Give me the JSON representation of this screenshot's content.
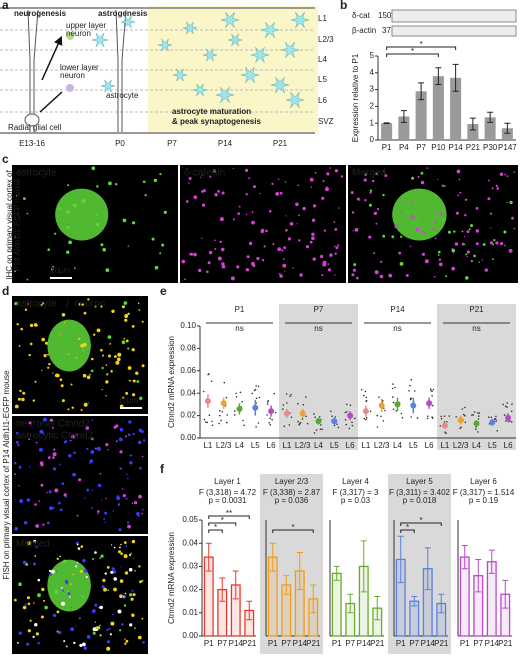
{
  "figure": {
    "panel_labels": [
      "a",
      "b",
      "c",
      "d",
      "e",
      "f"
    ],
    "a": {
      "titles": [
        "neurogenesis",
        "astrogenesis"
      ],
      "upper_neuron": [
        "upper layer",
        "neuron"
      ],
      "lower_neuron": [
        "lower layer",
        "neuron"
      ],
      "astrocyte": "astrocyte",
      "radial_glia": "Radial glial cell",
      "maturation": [
        "astrocyte maturation",
        "& peak synaptogenesis"
      ],
      "stages": [
        "E13-16",
        "P0",
        "P7",
        "P14",
        "P21"
      ],
      "layers": [
        "L1",
        "L2/3",
        "L4",
        "L5",
        "L6",
        "SVZ"
      ]
    },
    "blot": [
      {
        "label": "δ-cat",
        "marker": "150"
      },
      {
        "label": "β-actin",
        "marker": "37"
      }
    ],
    "c": {
      "channels": [
        "astrocyte",
        "δ-catenin",
        "Merged"
      ],
      "caption": [
        "IHC on primary visual cortex of",
        "P14 Aldh1l1-EGFP mouse"
      ],
      "scale": "10μm"
    },
    "d": {
      "top": [
        "astrocyte",
        "/",
        "neuron"
      ],
      "middle": [
        "neuronal Ctnnd2",
        "astrocytic Ctnnd2"
      ],
      "bottom": "Merged",
      "caption": "FISH on primary visual cortex of P14 Aldh1l1-EGFP mouse",
      "scale": "10μm"
    }
  },
  "chart_data": [
    {
      "type": "bar",
      "ylabel": "Expression relative to P1",
      "categories": [
        "P1",
        "P4",
        "P7",
        "P10",
        "P14",
        "P21",
        "P30",
        "P147"
      ],
      "values": [
        1,
        1.4,
        2.9,
        3.8,
        3.7,
        0.95,
        1.35,
        0.7
      ],
      "errors": [
        0.02,
        0.35,
        0.5,
        0.5,
        0.8,
        0.35,
        0.3,
        0.3
      ],
      "color": "#9a9a9a",
      "ylim": [
        0,
        5
      ],
      "yticks": [
        0,
        1,
        2,
        3,
        4,
        5
      ],
      "significance": [
        "*",
        "*"
      ]
    },
    {
      "type": "dot",
      "ylabel": "Ctnnd2 mRNA expression",
      "ylim": [
        0,
        0.1
      ],
      "yticks": [
        {
          "value": 0,
          "label": "0.00"
        },
        {
          "value": 0.02,
          "label": "0.02"
        },
        {
          "value": 0.04,
          "label": "0.04"
        },
        {
          "value": 0.06,
          "label": "0.06"
        },
        {
          "value": 0.08,
          "label": "0.08"
        },
        {
          "value": 0.1,
          "label": "0.10"
        }
      ],
      "colors": [
        "#e88a8a",
        "#f0a030",
        "#58a830",
        "#5a80e0",
        "#b84ac8"
      ],
      "groups": [
        {
          "name": "P1",
          "annotation": "ns",
          "categories": [
            "L1",
            "L2/3",
            "L4",
            "L5",
            "L6"
          ],
          "values": [
            0.033,
            0.031,
            0.026,
            0.027,
            0.024
          ],
          "errors": [
            0.006,
            0.005,
            0.005,
            0.007,
            0.005
          ]
        },
        {
          "name": "P7",
          "annotation": "ns",
          "categories": [
            "L1",
            "L2/3",
            "L4",
            "L5",
            "L6"
          ],
          "values": [
            0.022,
            0.022,
            0.015,
            0.015,
            0.02
          ],
          "errors": [
            0.004,
            0.004,
            0.003,
            0.003,
            0.004
          ]
        },
        {
          "name": "P14",
          "annotation": "ns",
          "categories": [
            "L1",
            "L2/3",
            "L4",
            "L5",
            "L6"
          ],
          "values": [
            0.024,
            0.029,
            0.03,
            0.029,
            0.031
          ],
          "errors": [
            0.005,
            0.006,
            0.006,
            0.007,
            0.005
          ]
        },
        {
          "name": "P21",
          "annotation": "ns",
          "categories": [
            "L1",
            "L2/3",
            "L4",
            "L5",
            "L6"
          ],
          "values": [
            0.011,
            0.016,
            0.013,
            0.014,
            0.018
          ],
          "errors": [
            0.003,
            0.004,
            0.003,
            0.003,
            0.004
          ]
        }
      ]
    },
    {
      "type": "bar",
      "title": "Layer 1",
      "stats": [
        "F (3,318) = 4.72",
        "p = 0.0031"
      ],
      "ylabel": "Ctnnd2 mRNA expression",
      "categories": [
        "P1",
        "P7",
        "P14",
        "P21"
      ],
      "values": [
        0.034,
        0.02,
        0.022,
        0.011
      ],
      "errors": [
        0.006,
        0.005,
        0.006,
        0.004
      ],
      "color": "#e8392b",
      "ylim": [
        0,
        0.05
      ],
      "yticks": [
        {
          "value": 0,
          "label": "0.00"
        },
        {
          "value": 0.01,
          "label": "0.01"
        },
        {
          "value": 0.02,
          "label": "0.02"
        },
        {
          "value": 0.03,
          "label": "0.03"
        },
        {
          "value": 0.04,
          "label": "0.04"
        },
        {
          "value": 0.05,
          "label": "0.05"
        }
      ],
      "significance": [
        "*",
        "*",
        "**"
      ],
      "shaded": false
    },
    {
      "type": "bar",
      "title": "Layer 2/3",
      "stats": [
        "F (3,338) = 2.87",
        "p = 0.036"
      ],
      "categories": [
        "P1",
        "P7",
        "P14",
        "P21"
      ],
      "values": [
        0.034,
        0.022,
        0.028,
        0.016
      ],
      "errors": [
        0.006,
        0.004,
        0.008,
        0.006
      ],
      "color": "#f39c12",
      "ylim": [
        0,
        0.05
      ],
      "significance": [
        "*"
      ],
      "shaded": true
    },
    {
      "type": "bar",
      "title": "Layer 4",
      "stats": [
        "F (3,317) = 3",
        "p = 0.03"
      ],
      "categories": [
        "P1",
        "P7",
        "P14",
        "P21"
      ],
      "values": [
        0.027,
        0.014,
        0.03,
        0.012
      ],
      "errors": [
        0.003,
        0.004,
        0.011,
        0.005
      ],
      "color": "#6aaa2a",
      "ylim": [
        0,
        0.05
      ],
      "significance": [],
      "shaded": false
    },
    {
      "type": "bar",
      "title": "Layer 5",
      "stats": [
        "F (3,311) = 3.402",
        "p = 0.018"
      ],
      "categories": [
        "P1",
        "P7",
        "P14",
        "P21"
      ],
      "values": [
        0.033,
        0.015,
        0.029,
        0.014
      ],
      "errors": [
        0.01,
        0.002,
        0.009,
        0.004
      ],
      "color": "#5b7fe0",
      "ylim": [
        0,
        0.05
      ],
      "significance": [
        "*",
        "*"
      ],
      "shaded": true
    },
    {
      "type": "bar",
      "title": "Layer 6",
      "stats": [
        "F (3,317) = 1.514",
        "p = 0.19"
      ],
      "categories": [
        "P1",
        "P7",
        "P14",
        "P21"
      ],
      "values": [
        0.034,
        0.026,
        0.032,
        0.018
      ],
      "errors": [
        0.005,
        0.007,
        0.005,
        0.006
      ],
      "color": "#b84ac8",
      "ylim": [
        0,
        0.05
      ],
      "significance": [],
      "shaded": false
    }
  ]
}
